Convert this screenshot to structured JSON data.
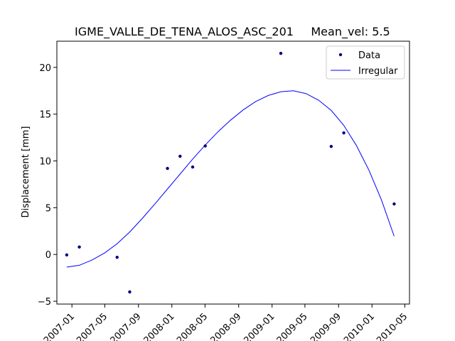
{
  "chart_data": {
    "type": "line",
    "title": "IGME_VALLE_DE_TENA_ALOS_ASC_201",
    "subtitle": "Mean_vel: 5.5",
    "xlabel": "",
    "ylabel": "Displacement [mm]",
    "x_type": "date",
    "xlim": [
      "2006-11-07",
      "2010-05-18"
    ],
    "ylim": [
      -5.3,
      22.8
    ],
    "x_ticks": [
      "2007-01-01",
      "2007-05-01",
      "2007-09-01",
      "2008-01-01",
      "2008-05-01",
      "2008-09-01",
      "2009-01-01",
      "2009-05-01",
      "2009-09-01",
      "2010-01-01",
      "2010-05-01"
    ],
    "x_tick_labels": [
      "2007-01",
      "2007-05",
      "2007-09",
      "2008-01",
      "2008-05",
      "2008-09",
      "2009-01",
      "2009-05",
      "2009-09",
      "2010-01",
      "2010-05"
    ],
    "y_ticks": [
      -5,
      0,
      5,
      10,
      15,
      20
    ],
    "y_tick_labels": [
      "−5",
      "0",
      "5",
      "10",
      "15",
      "20"
    ],
    "grid": false,
    "legend": {
      "position": "top-right",
      "entries": [
        "Data",
        "Irregular"
      ]
    },
    "series": [
      {
        "name": "Data",
        "style": "points",
        "color": "#00007f",
        "points": [
          {
            "x": "2006-12-13",
            "y": -0.05
          },
          {
            "x": "2007-01-28",
            "y": 0.8
          },
          {
            "x": "2007-06-15",
            "y": -0.3
          },
          {
            "x": "2007-07-31",
            "y": -4.0
          },
          {
            "x": "2007-12-16",
            "y": 9.2
          },
          {
            "x": "2008-01-31",
            "y": 10.5
          },
          {
            "x": "2008-03-17",
            "y": 9.35
          },
          {
            "x": "2008-05-02",
            "y": 11.6
          },
          {
            "x": "2009-02-02",
            "y": 21.5
          },
          {
            "x": "2009-08-05",
            "y": 11.55
          },
          {
            "x": "2009-09-20",
            "y": 13.0
          },
          {
            "x": "2010-03-23",
            "y": 5.4
          }
        ]
      },
      {
        "name": "Irregular",
        "style": "line",
        "color": "#0000ff",
        "points": [
          {
            "x": "2006-12-13",
            "y": -1.35
          },
          {
            "x": "2007-01-28",
            "y": -1.15
          },
          {
            "x": "2007-03-15",
            "y": -0.6
          },
          {
            "x": "2007-04-30",
            "y": 0.15
          },
          {
            "x": "2007-06-15",
            "y": 1.15
          },
          {
            "x": "2007-07-31",
            "y": 2.4
          },
          {
            "x": "2007-09-15",
            "y": 3.85
          },
          {
            "x": "2007-10-31",
            "y": 5.4
          },
          {
            "x": "2007-12-16",
            "y": 7.0
          },
          {
            "x": "2008-01-31",
            "y": 8.6
          },
          {
            "x": "2008-03-17",
            "y": 10.2
          },
          {
            "x": "2008-05-02",
            "y": 11.7
          },
          {
            "x": "2008-06-17",
            "y": 13.1
          },
          {
            "x": "2008-08-02",
            "y": 14.35
          },
          {
            "x": "2008-09-17",
            "y": 15.45
          },
          {
            "x": "2008-11-02",
            "y": 16.35
          },
          {
            "x": "2008-12-18",
            "y": 17.0
          },
          {
            "x": "2009-02-02",
            "y": 17.4
          },
          {
            "x": "2009-03-20",
            "y": 17.5
          },
          {
            "x": "2009-05-05",
            "y": 17.2
          },
          {
            "x": "2009-06-20",
            "y": 16.5
          },
          {
            "x": "2009-08-05",
            "y": 15.4
          },
          {
            "x": "2009-09-20",
            "y": 13.8
          },
          {
            "x": "2009-11-05",
            "y": 11.65
          },
          {
            "x": "2009-12-21",
            "y": 9.0
          },
          {
            "x": "2010-02-05",
            "y": 5.8
          },
          {
            "x": "2010-03-23",
            "y": 1.95
          }
        ]
      }
    ]
  }
}
